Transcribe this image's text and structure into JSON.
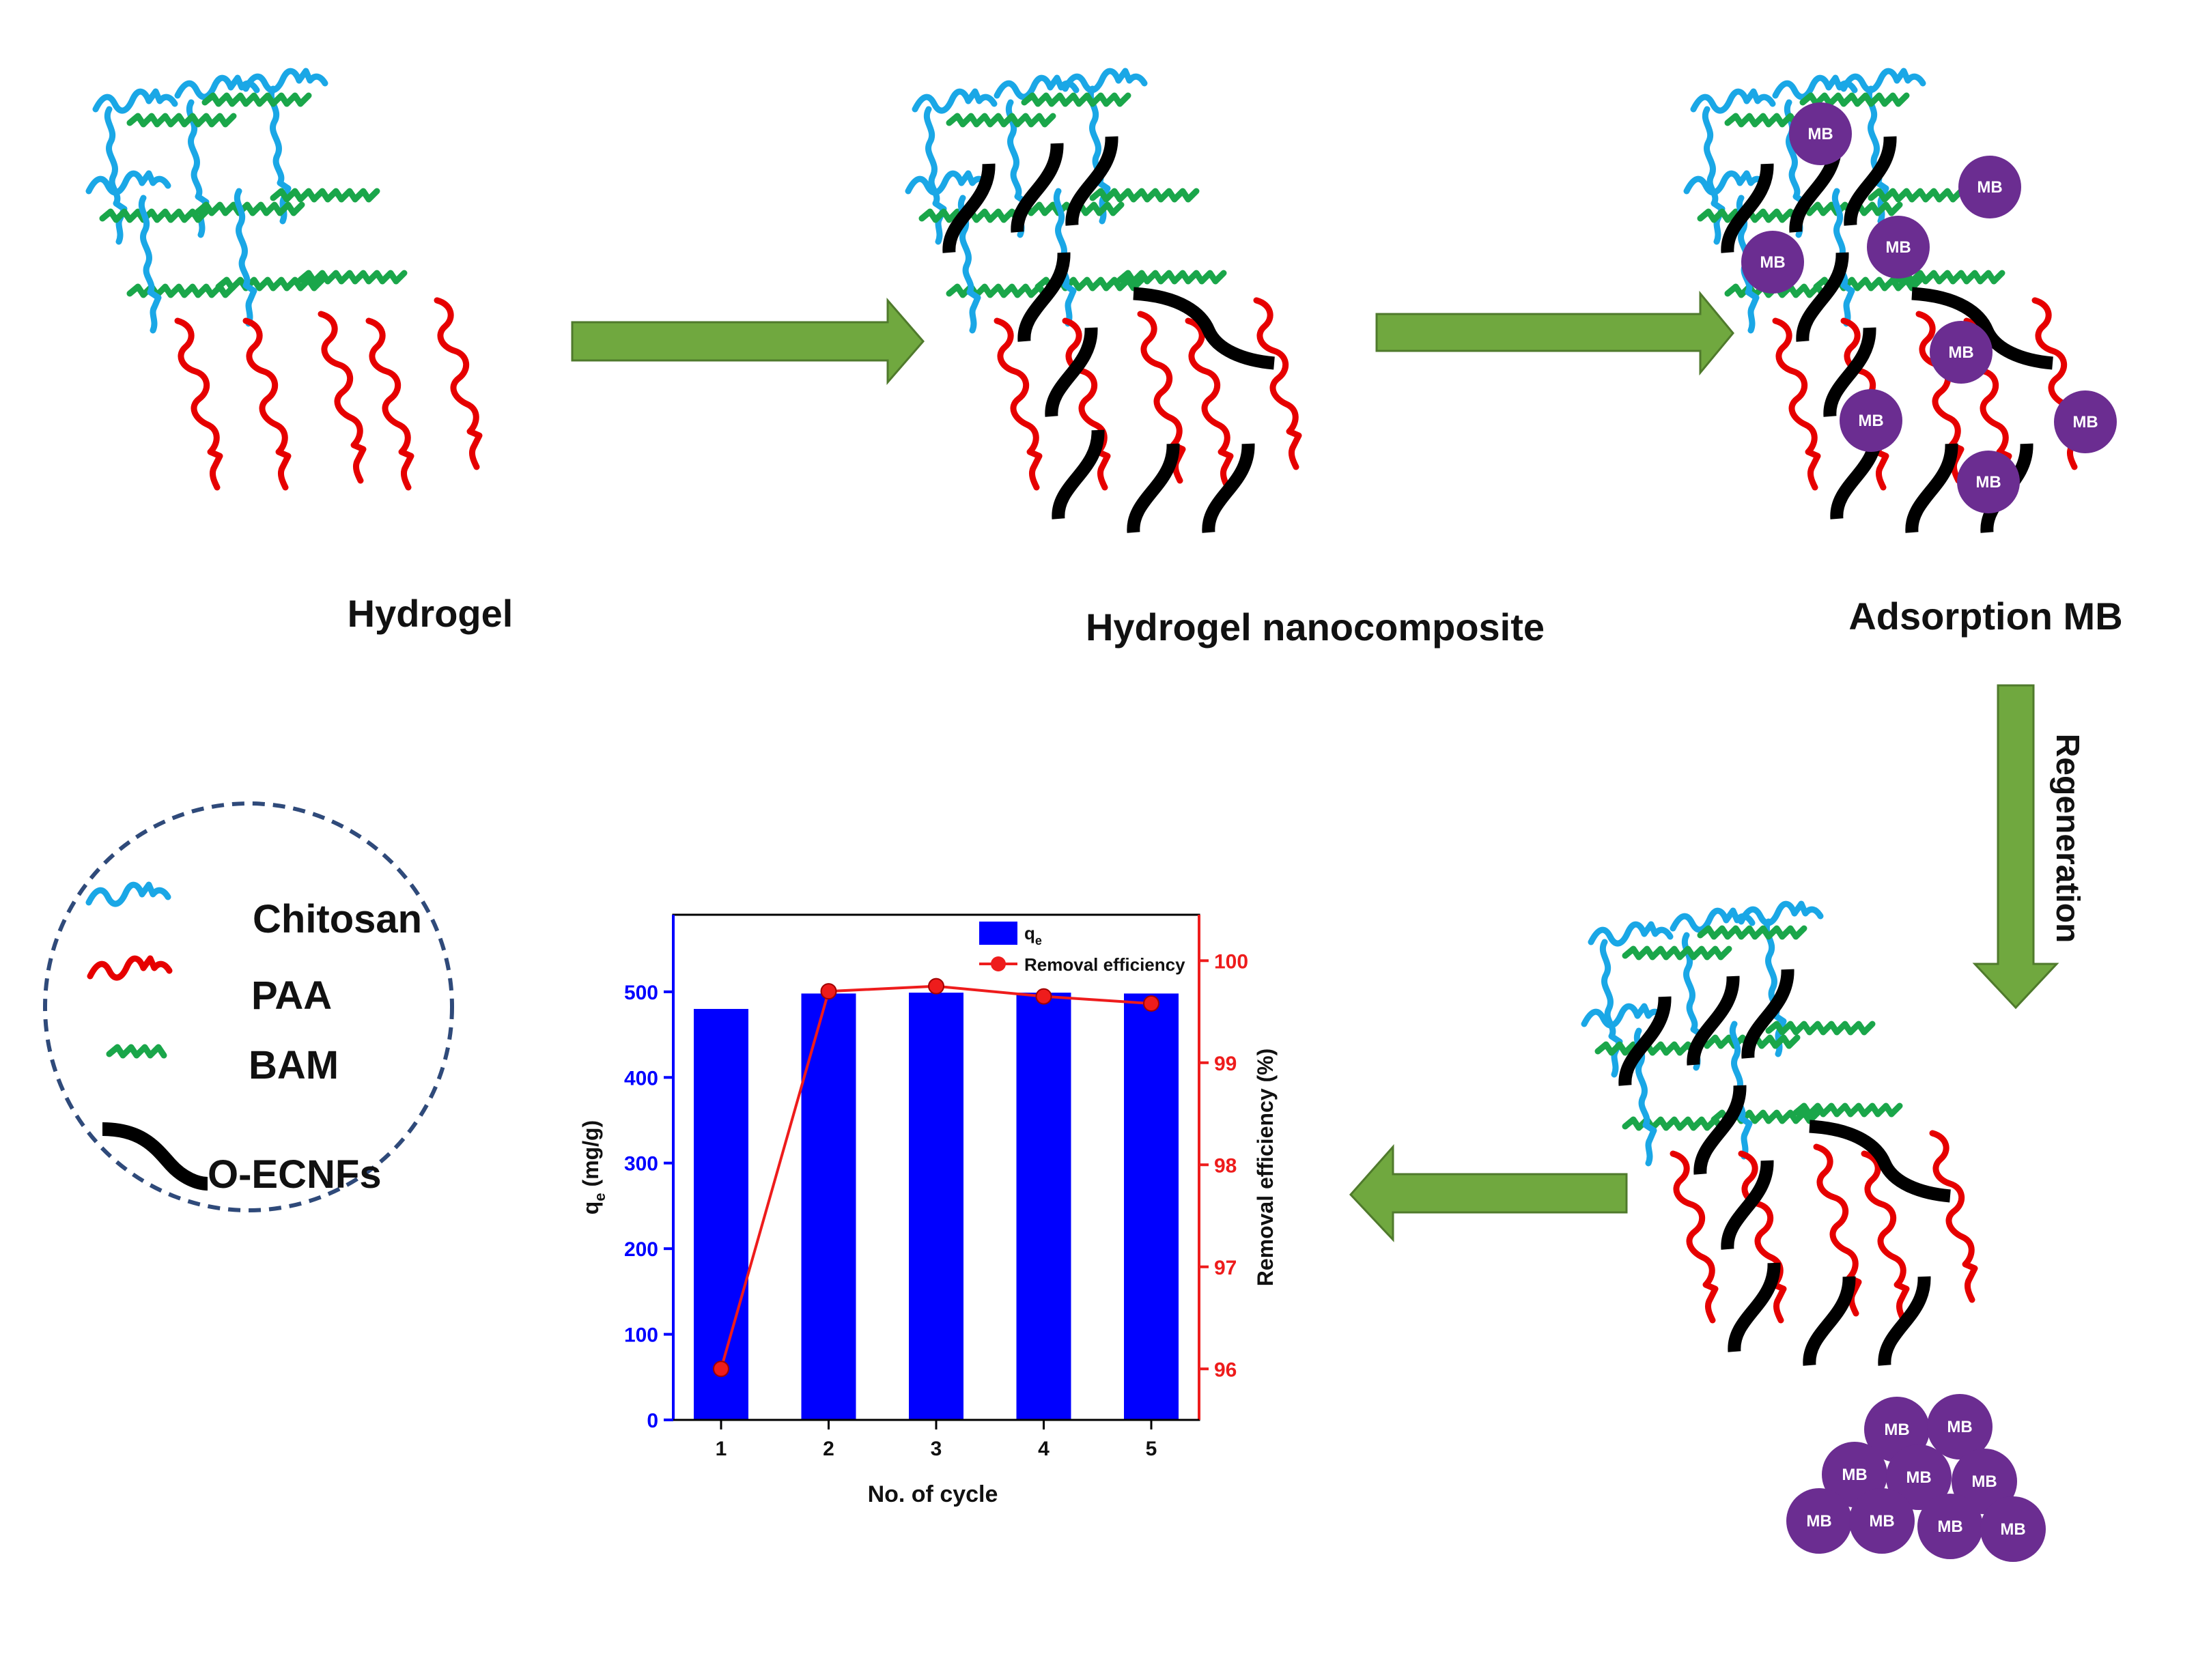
{
  "stages": {
    "hydrogel": "Hydrogel",
    "nanocomposite": "Hydrogel nanocomposite",
    "adsorption": "Adsorption MB",
    "regeneration": "Regeneration"
  },
  "mb_label": "MB",
  "legend": {
    "items": [
      {
        "label": "Chitosan",
        "color": "#1aa7e6"
      },
      {
        "label": "PAA",
        "color": "#e60000"
      },
      {
        "label": "BAM",
        "color": "#1aa64a"
      },
      {
        "label": "O-ECNFs",
        "color": "#000000"
      }
    ]
  },
  "colors": {
    "arrow": "#70a83f",
    "arrow_stroke": "#4f7a2c",
    "mb": "#6b2d91",
    "bar": "#0000ff",
    "line": "#ee1c1c",
    "legend_border": "#2f4a7a"
  },
  "chart_data": {
    "type": "bar",
    "categories": [
      "1",
      "2",
      "3",
      "4",
      "5"
    ],
    "x_label": "No. of cycle",
    "series": [
      {
        "name": "q",
        "name_sub": "e",
        "type": "bar",
        "axis": "left",
        "values": [
          480,
          498,
          499,
          499,
          498
        ]
      },
      {
        "name": "Removal efficiency",
        "type": "line",
        "axis": "right",
        "values": [
          96.0,
          99.7,
          99.75,
          99.65,
          99.58
        ]
      }
    ],
    "y_left": {
      "label": "q",
      "label_sub": "e",
      "label_rest": " (mg/g)",
      "min": 0,
      "max": 590,
      "ticks": [
        0,
        100,
        200,
        300,
        400,
        500
      ]
    },
    "y_right": {
      "label": "Removal efficiency (%)",
      "min": 95.5,
      "max": 100.45,
      "ticks": [
        96,
        97,
        98,
        99,
        100
      ]
    },
    "legend_position": "top-right"
  }
}
